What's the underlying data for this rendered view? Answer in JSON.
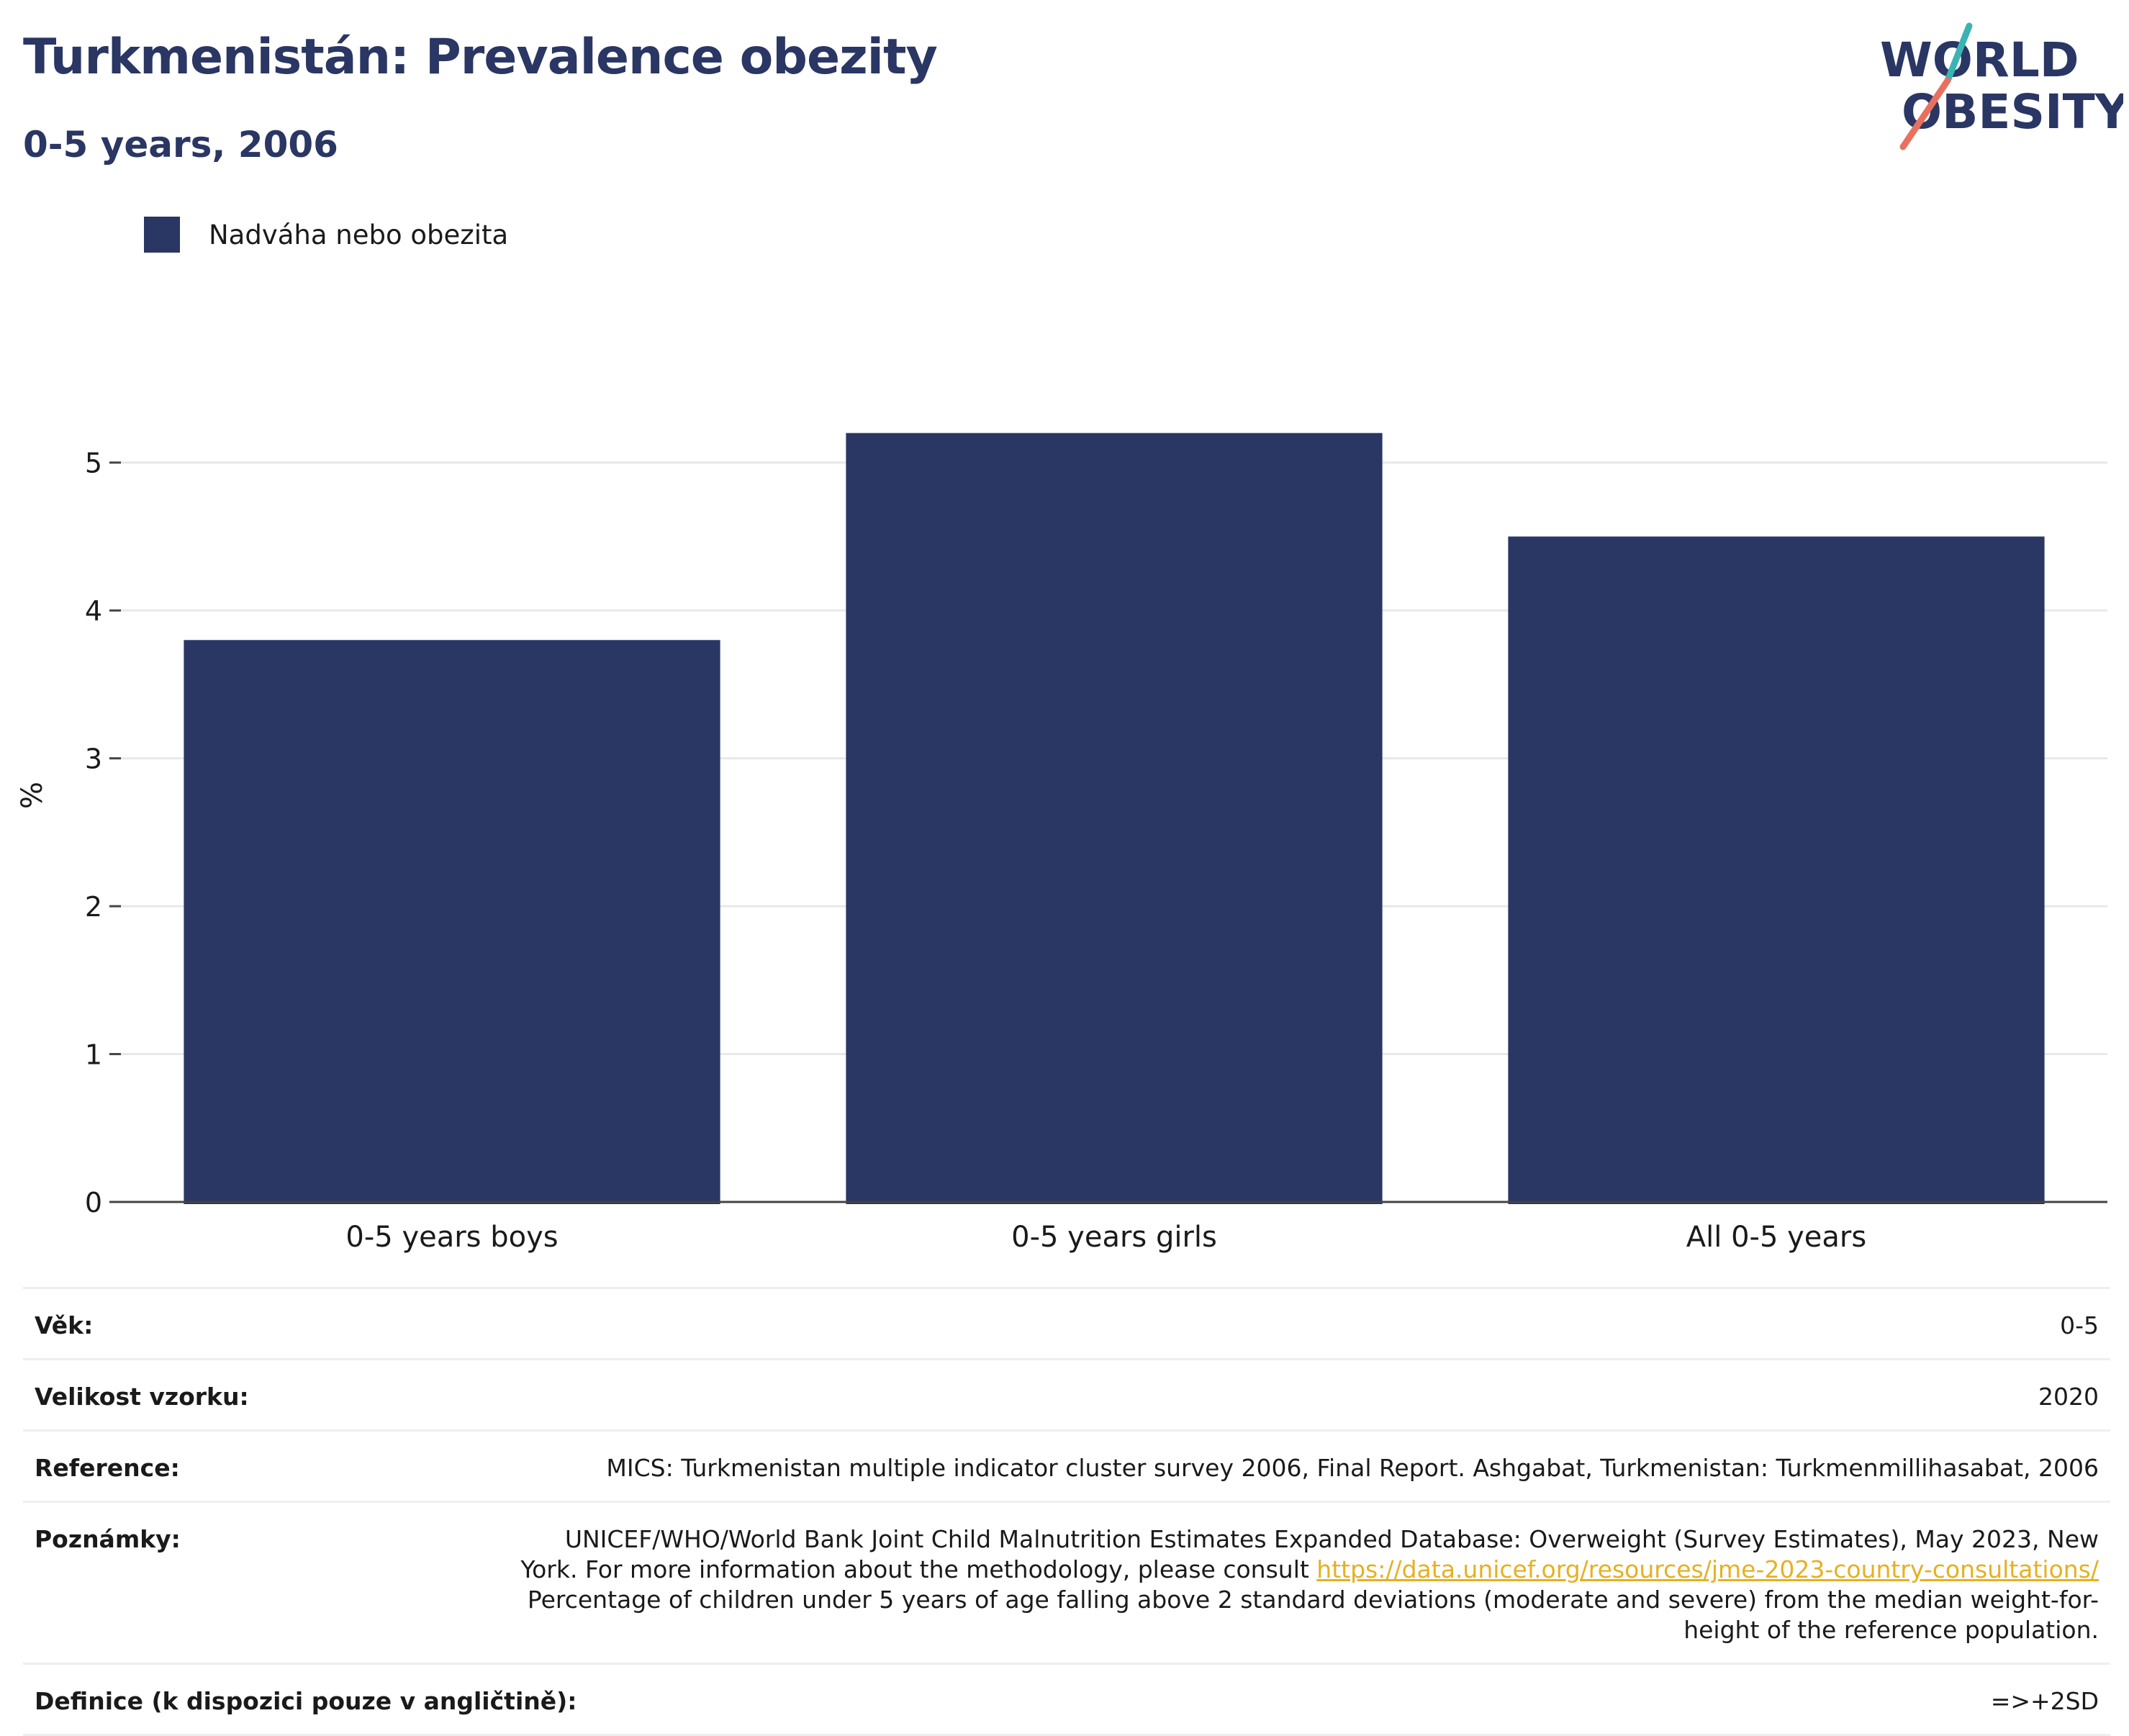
{
  "header": {
    "title": "Turkmenistán: Prevalence obezity",
    "subtitle": "0-5 years, 2006"
  },
  "logo": {
    "line1": "WORLD",
    "line2": "OBESITY"
  },
  "legend": {
    "label": "Nadváha nebo obezita"
  },
  "colors": {
    "bar": "#2a3663",
    "title": "#2a3663",
    "logo_teal": "#3bb3b3",
    "logo_red": "#e8705f",
    "link": "#e6b020"
  },
  "chart_data": {
    "type": "bar",
    "categories": [
      "0-5 years boys",
      "0-5 years girls",
      "All 0-5 years"
    ],
    "series": [
      {
        "name": "Nadváha nebo obezita",
        "values": [
          3.8,
          5.2,
          4.5
        ]
      }
    ],
    "ylabel": "%",
    "ylim": [
      0,
      5.5
    ],
    "yticks": [
      0,
      1,
      2,
      3,
      4,
      5
    ],
    "grid": true
  },
  "meta": {
    "age_label": "Věk:",
    "age_value": "0-5",
    "sample_label": "Velikost vzorku:",
    "sample_value": "2020",
    "reference_label": "Reference:",
    "reference_value": "MICS: Turkmenistan multiple indicator cluster survey 2006, Final Report. Ashgabat, Turkmenistan: Turkmenmillihasabat, 2006",
    "notes_label": "Poznámky:",
    "notes_line1": "UNICEF/WHO/World Bank Joint Child Malnutrition Estimates Expanded Database: Overweight (Survey Estimates), May 2023, New",
    "notes_line2_prefix": "York. For more information about the methodology, please consult ",
    "notes_link": "https://data.unicef.org/resources/jme-2023-country-consultations/",
    "notes_line3": "Percentage of children under 5 years of age falling above 2 standard deviations (moderate and severe) from the median weight-for-",
    "notes_line4": "height of the reference population.",
    "definition_label": "Definice (k dispozici pouze v angličtině):",
    "definition_value": "=>+2SD"
  }
}
